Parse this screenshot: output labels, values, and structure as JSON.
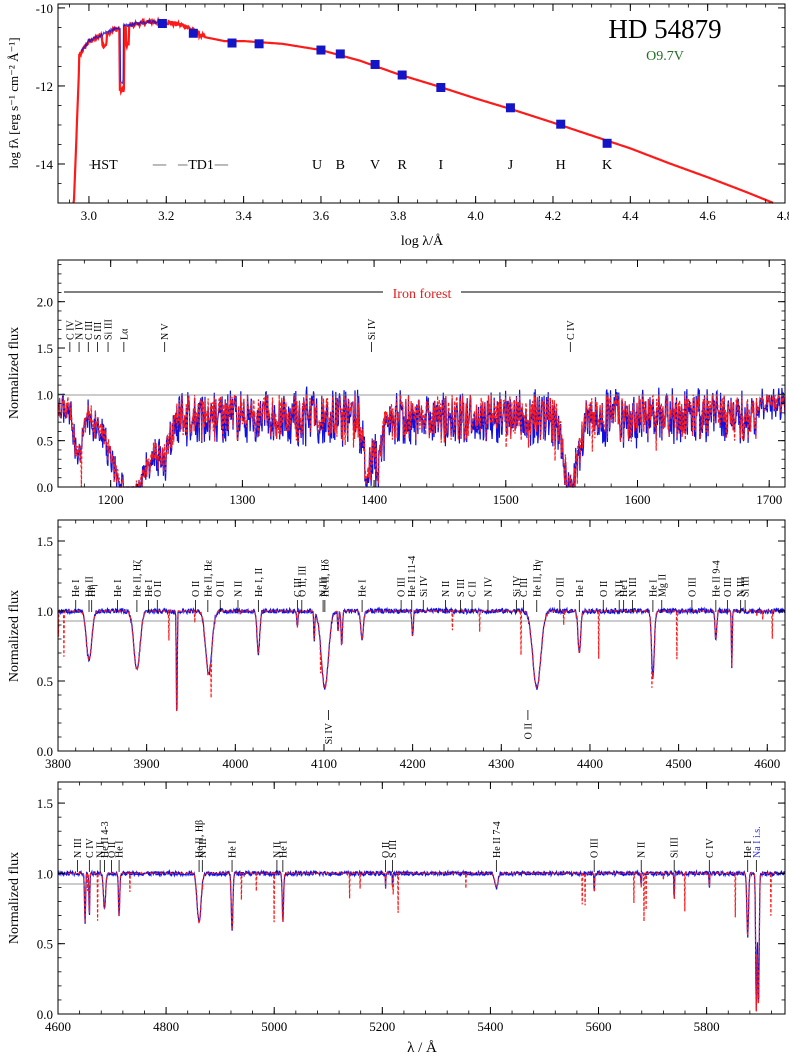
{
  "colors": {
    "model": "#ff1a1a",
    "observed": "#1010e0",
    "sed_points": "#1515c8",
    "annotation_red": "#e02020",
    "spectral_type": "#207020",
    "nai_blue": "#3030dd",
    "axis": "#000000"
  },
  "chart_data": [
    {
      "id": "sed",
      "type": "line",
      "title": "HD 54879",
      "subtitle": "O9.7V",
      "xlabel": "log λ/Å",
      "ylabel": "log fλ [erg s⁻¹ cm⁻² Å⁻¹]",
      "xlim": [
        2.92,
        4.8
      ],
      "ylim": [
        -15,
        -9.9
      ],
      "xticks": [
        3.0,
        3.2,
        3.4,
        3.6,
        3.8,
        4.0,
        4.2,
        4.4,
        4.6,
        4.8
      ],
      "xtick_labels": [
        "3.0",
        "3.2",
        "3.4",
        "3.6",
        "3.8",
        "4.0",
        "4.2",
        "4.4",
        "4.6",
        "4.8"
      ],
      "yticks": [
        -10,
        -12,
        -14
      ],
      "ytick_labels": [
        "-10",
        "-12",
        "-14"
      ],
      "model_curve": {
        "x": [
          2.96,
          3.0,
          3.05,
          3.1,
          3.15,
          3.2,
          3.25,
          3.3,
          3.35,
          3.4,
          3.5,
          3.6,
          3.7,
          3.8,
          3.9,
          4.0,
          4.1,
          4.2,
          4.3,
          4.4,
          4.5,
          4.6,
          4.7,
          4.77
        ],
        "y": [
          -11.4,
          -10.85,
          -10.6,
          -10.45,
          -10.35,
          -10.35,
          -10.45,
          -10.75,
          -10.85,
          -10.85,
          -10.92,
          -11.08,
          -11.35,
          -11.7,
          -12.0,
          -12.32,
          -12.62,
          -12.94,
          -13.27,
          -13.6,
          -13.98,
          -14.34,
          -14.72,
          -15.0
        ]
      },
      "photometry": {
        "x": [
          3.19,
          3.27,
          3.37,
          3.44,
          3.6,
          3.65,
          3.74,
          3.81,
          3.91,
          4.09,
          4.22,
          4.34
        ],
        "y": [
          -10.4,
          -10.65,
          -10.9,
          -10.92,
          -11.08,
          -11.18,
          -11.45,
          -11.72,
          -12.04,
          -12.56,
          -12.98,
          -13.47
        ]
      },
      "band_labels": [
        {
          "label": "HST",
          "x": 3.04,
          "y": -14.0
        },
        {
          "label": "TD1",
          "x": 3.29,
          "y": -14.0
        },
        {
          "label": "U",
          "x": 3.59,
          "y": -14.0
        },
        {
          "label": "B",
          "x": 3.65,
          "y": -14.0
        },
        {
          "label": "V",
          "x": 3.74,
          "y": -14.0
        },
        {
          "label": "R",
          "x": 3.81,
          "y": -14.0
        },
        {
          "label": "I",
          "x": 3.91,
          "y": -14.0
        },
        {
          "label": "J",
          "x": 4.09,
          "y": -14.0
        },
        {
          "label": "H",
          "x": 4.22,
          "y": -14.0
        },
        {
          "label": "K",
          "x": 4.34,
          "y": -14.0
        }
      ]
    },
    {
      "id": "uv",
      "type": "line",
      "xlabel": "",
      "ylabel": "Normalized flux",
      "xlim": [
        1160,
        1712
      ],
      "ylim": [
        0,
        2.45
      ],
      "xticks": [
        1200,
        1300,
        1400,
        1500,
        1600,
        1700
      ],
      "xtick_labels": [
        "1200",
        "1300",
        "1400",
        "1500",
        "1600",
        "1700"
      ],
      "yticks": [
        0.0,
        0.5,
        1.0,
        1.5,
        2.0
      ],
      "ytick_labels": [
        "0.0",
        "0.5",
        "1.0",
        "1.5",
        "2.0"
      ],
      "banner": {
        "label": "Iron forest",
        "y": 2.1
      },
      "lines": [
        {
          "label": "C IV",
          "x": 1169
        },
        {
          "label": "N IV",
          "x": 1176
        },
        {
          "label": "C III",
          "x": 1183
        },
        {
          "label": "S III",
          "x": 1190
        },
        {
          "label": "Si III",
          "x": 1198
        },
        {
          "label": "Lα",
          "x": 1210
        },
        {
          "label": "N V",
          "x": 1241
        },
        {
          "label": "Si IV",
          "x": 1398
        },
        {
          "label": "C IV",
          "x": 1549
        }
      ]
    },
    {
      "id": "blue",
      "type": "line",
      "xlabel": "",
      "ylabel": "Normalized flux",
      "xlim": [
        3800,
        4620
      ],
      "ylim": [
        0,
        1.65
      ],
      "xticks": [
        3800,
        3900,
        4000,
        4100,
        4200,
        4300,
        4400,
        4500,
        4600
      ],
      "xtick_labels": [
        "3800",
        "3900",
        "4000",
        "4100",
        "4200",
        "4300",
        "4400",
        "4500",
        "4600"
      ],
      "yticks": [
        0.0,
        0.5,
        1.0,
        1.5
      ],
      "ytick_labels": [
        "0.0",
        "0.5",
        "1.0",
        "1.5"
      ],
      "lines": [
        {
          "label": "He I",
          "x": 3820
        },
        {
          "label": "He II",
          "x": 3835
        },
        {
          "label": "Hη",
          "x": 3838
        },
        {
          "label": "He I",
          "x": 3867
        },
        {
          "label": "He II, Hζ",
          "x": 3889
        },
        {
          "label": "He I",
          "x": 3902
        },
        {
          "label": "O II",
          "x": 3912
        },
        {
          "label": "O II",
          "x": 3955
        },
        {
          "label": "He II, Hε",
          "x": 3969
        },
        {
          "label": "O II",
          "x": 3983
        },
        {
          "label": "N II",
          "x": 4003
        },
        {
          "label": "He I, II",
          "x": 4026
        },
        {
          "label": "C III",
          "x": 4070
        },
        {
          "label": "O II, III",
          "x": 4075
        },
        {
          "label": "N III",
          "x": 4099
        },
        {
          "label": "He II, Hδ",
          "x": 4101
        },
        {
          "label": "He I",
          "x": 4143
        },
        {
          "label": "O III",
          "x": 4187
        },
        {
          "label": "He II 11-4",
          "x": 4199
        },
        {
          "label": "Si IV",
          "x": 4212
        },
        {
          "label": "N II",
          "x": 4237
        },
        {
          "label": "S III",
          "x": 4254
        },
        {
          "label": "C II",
          "x": 4267
        },
        {
          "label": "N IV",
          "x": 4285
        },
        {
          "label": "Si IV",
          "x": 4317
        },
        {
          "label": "C III",
          "x": 4325
        },
        {
          "label": "He II, Hγ",
          "x": 4340
        },
        {
          "label": "O III",
          "x": 4366
        },
        {
          "label": "He I",
          "x": 4388
        },
        {
          "label": "O II",
          "x": 4415
        },
        {
          "label": "N II",
          "x": 4433
        },
        {
          "label": "He I",
          "x": 4438
        },
        {
          "label": "N III",
          "x": 4448
        },
        {
          "label": "He I",
          "x": 4471
        },
        {
          "label": "Mg II",
          "x": 4481
        },
        {
          "label": "O III",
          "x": 4515
        },
        {
          "label": "He II 9-4",
          "x": 4542
        },
        {
          "label": "O III",
          "x": 4555
        },
        {
          "label": "N III",
          "x": 4570
        },
        {
          "label": "Si III",
          "x": 4575
        }
      ],
      "below_lines": [
        {
          "label": "Si IV",
          "x": 4105
        },
        {
          "label": "O II",
          "x": 4330
        }
      ]
    },
    {
      "id": "red",
      "type": "line",
      "xlabel": "λ / Å",
      "ylabel": "Normalized flux",
      "xlim": [
        4600,
        5945
      ],
      "ylim": [
        0,
        1.65
      ],
      "xticks": [
        4600,
        4800,
        5000,
        5200,
        5400,
        5600,
        5800
      ],
      "xtick_labels": [
        "4600",
        "4800",
        "5000",
        "5200",
        "5400",
        "5600",
        "5800"
      ],
      "yticks": [
        0.0,
        0.5,
        1.0,
        1.5
      ],
      "ytick_labels": [
        "0.0",
        "0.5",
        "1.0",
        "1.5"
      ],
      "lines": [
        {
          "label": "N III",
          "x": 4636
        },
        {
          "label": "C IV",
          "x": 4658
        },
        {
          "label": "N II",
          "x": 4678
        },
        {
          "label": "He II 4-3",
          "x": 4686
        },
        {
          "label": "O II",
          "x": 4699
        },
        {
          "label": "He I",
          "x": 4713
        },
        {
          "label": "He II, Hβ",
          "x": 4861
        },
        {
          "label": "N III",
          "x": 4867
        },
        {
          "label": "He I",
          "x": 4922
        },
        {
          "label": "N II",
          "x": 5005
        },
        {
          "label": "He I",
          "x": 5016
        },
        {
          "label": "O II",
          "x": 5206
        },
        {
          "label": "S III",
          "x": 5219
        },
        {
          "label": "He II 7-4",
          "x": 5411
        },
        {
          "label": "O III",
          "x": 5592
        },
        {
          "label": "N II",
          "x": 5679
        },
        {
          "label": "Si III",
          "x": 5740
        },
        {
          "label": "C IV",
          "x": 5805
        },
        {
          "label": "He I",
          "x": 5876
        },
        {
          "label": "Na I i.s.",
          "x": 5892
        }
      ]
    }
  ]
}
